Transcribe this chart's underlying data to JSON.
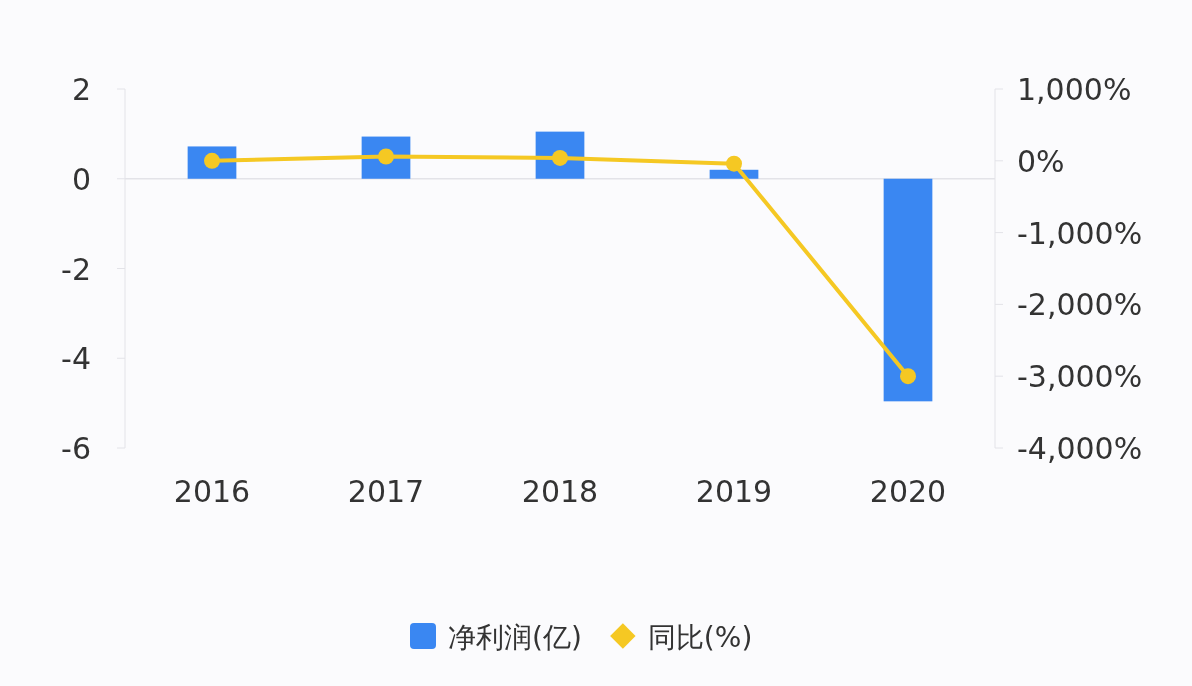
{
  "chart_data": {
    "type": "bar",
    "categories": [
      "2016",
      "2017",
      "2018",
      "2019",
      "2020"
    ],
    "series": [
      {
        "name": "净利润(亿)",
        "color": "#3a87f2",
        "values": [
          0.72,
          0.94,
          1.05,
          0.2,
          -4.96
        ]
      },
      {
        "name": "同比(%)",
        "type": "line",
        "axis": "y2",
        "color": "#f5c823",
        "values": [
          0,
          60,
          40,
          -40,
          -3000
        ]
      }
    ],
    "ylim": [
      -6,
      2
    ],
    "yticks": [
      {
        "value": 2,
        "label": "2"
      },
      {
        "value": 0,
        "label": "0"
      },
      {
        "value": -2,
        "label": "-2"
      },
      {
        "value": -4,
        "label": "-4"
      },
      {
        "value": -6,
        "label": "-6"
      }
    ],
    "y2lim": [
      -4000,
      1000
    ],
    "y2ticks": [
      {
        "value": 1000,
        "label": "1,000%"
      },
      {
        "value": 0,
        "label": "0%"
      },
      {
        "value": -1000,
        "label": "-1,000%"
      },
      {
        "value": -2000,
        "label": "-2,000%"
      },
      {
        "value": -3000,
        "label": "-3,000%"
      },
      {
        "value": -4000,
        "label": "-4,000%"
      }
    ],
    "marker": "circle",
    "legend": "bottom"
  }
}
